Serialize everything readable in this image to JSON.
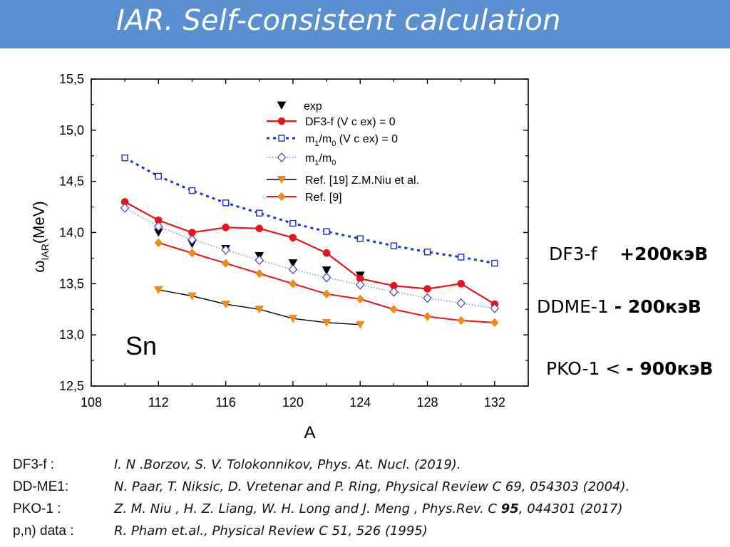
{
  "header": {
    "title": "IAR. Self-consistent calculation"
  },
  "chart_data": {
    "type": "line",
    "xlabel": "A",
    "ylabel": "ω",
    "ylabel_sub": "IAR",
    "ylabel_unit": "(MeV)",
    "xlim": [
      108,
      134
    ],
    "ylim": [
      12.5,
      15.5
    ],
    "x_ticks": [
      108,
      112,
      116,
      120,
      124,
      128,
      132
    ],
    "y_ticks": [
      "12,5",
      "13,0",
      "13,5",
      "14,0",
      "14,5",
      "15,0",
      "15,5"
    ],
    "y_tick_values": [
      12.5,
      13.0,
      13.5,
      14.0,
      14.5,
      15.0,
      15.5
    ],
    "annotation": "Sn",
    "legend_position": "top-center",
    "series": [
      {
        "name": "exp",
        "style": "triangle-down",
        "color": "#000000",
        "x": [
          112,
          114,
          116,
          118,
          120,
          122,
          124
        ],
        "y": [
          14.0,
          13.89,
          13.84,
          13.77,
          13.7,
          13.63,
          13.58
        ]
      },
      {
        "name": "DF3-f (V c ex) = 0",
        "style": "line-circle",
        "color": "#e8141c",
        "x": [
          110,
          112,
          114,
          116,
          118,
          120,
          122,
          124,
          126,
          128,
          130,
          132
        ],
        "y": [
          14.3,
          14.12,
          14.0,
          14.05,
          14.04,
          13.95,
          13.8,
          13.55,
          13.48,
          13.45,
          13.5,
          13.3
        ]
      },
      {
        "name": "m1/m0 (V c ex) = 0",
        "style": "dash-square",
        "color": "#1a2ed6",
        "x": [
          110,
          112,
          114,
          116,
          118,
          120,
          122,
          124,
          126,
          128,
          130,
          132
        ],
        "y": [
          14.73,
          14.55,
          14.41,
          14.29,
          14.19,
          14.09,
          14.01,
          13.94,
          13.87,
          13.81,
          13.76,
          13.7
        ]
      },
      {
        "name": "m1/m0",
        "style": "dot-diamond",
        "color": "#4040c8",
        "x": [
          110,
          112,
          114,
          116,
          118,
          120,
          122,
          124,
          126,
          128,
          130,
          132
        ],
        "y": [
          14.24,
          14.06,
          13.93,
          13.83,
          13.73,
          13.64,
          13.56,
          13.49,
          13.42,
          13.36,
          13.31,
          13.26
        ]
      },
      {
        "name": "Ref. [19] Z.M.Niu et al.",
        "style": "line-triangle",
        "color": "#000000",
        "x": [
          112,
          114,
          116,
          118,
          120,
          122,
          124
        ],
        "y": [
          13.44,
          13.38,
          13.3,
          13.25,
          13.16,
          13.12,
          13.1
        ]
      },
      {
        "name": "Ref. [9]",
        "style": "line-diamond",
        "color": "#f08a1a",
        "x": [
          112,
          114,
          116,
          118,
          120,
          122,
          124,
          126,
          128,
          130,
          132
        ],
        "y": [
          13.9,
          13.8,
          13.7,
          13.6,
          13.5,
          13.4,
          13.35,
          13.25,
          13.18,
          13.14,
          13.12
        ]
      }
    ]
  },
  "side_notes": [
    {
      "label": "DF3-f",
      "value": "+200кэВ"
    },
    {
      "label": "DDME-1",
      "value": "- 200кэВ"
    },
    {
      "label": "PKO-1  < ",
      "value": "- 900кэВ"
    }
  ],
  "references": [
    {
      "label": "DF3-f :",
      "text": " I. N .Borzov,  S. V. Tolokonnikov, Phys. At. Nucl. (2019)."
    },
    {
      "label": "DD-ME1:",
      "text": "N. Paar, T. Niksic, D. Vretenar and P. Ring, Physical Review C 69, 054303 (2004)."
    },
    {
      "label": "PKO-1 :",
      "text_pre": "Z. M. Niu , H. Z. Liang, W. H. Long and J. Meng , Phys.Rev. C ",
      "text_bold": "95",
      "text_post": ", 044301 (2017)"
    },
    {
      "label": "p,n) data :",
      "text": "R. Pham et.al.,  Physical Review C 51, 526 (1995)"
    }
  ]
}
